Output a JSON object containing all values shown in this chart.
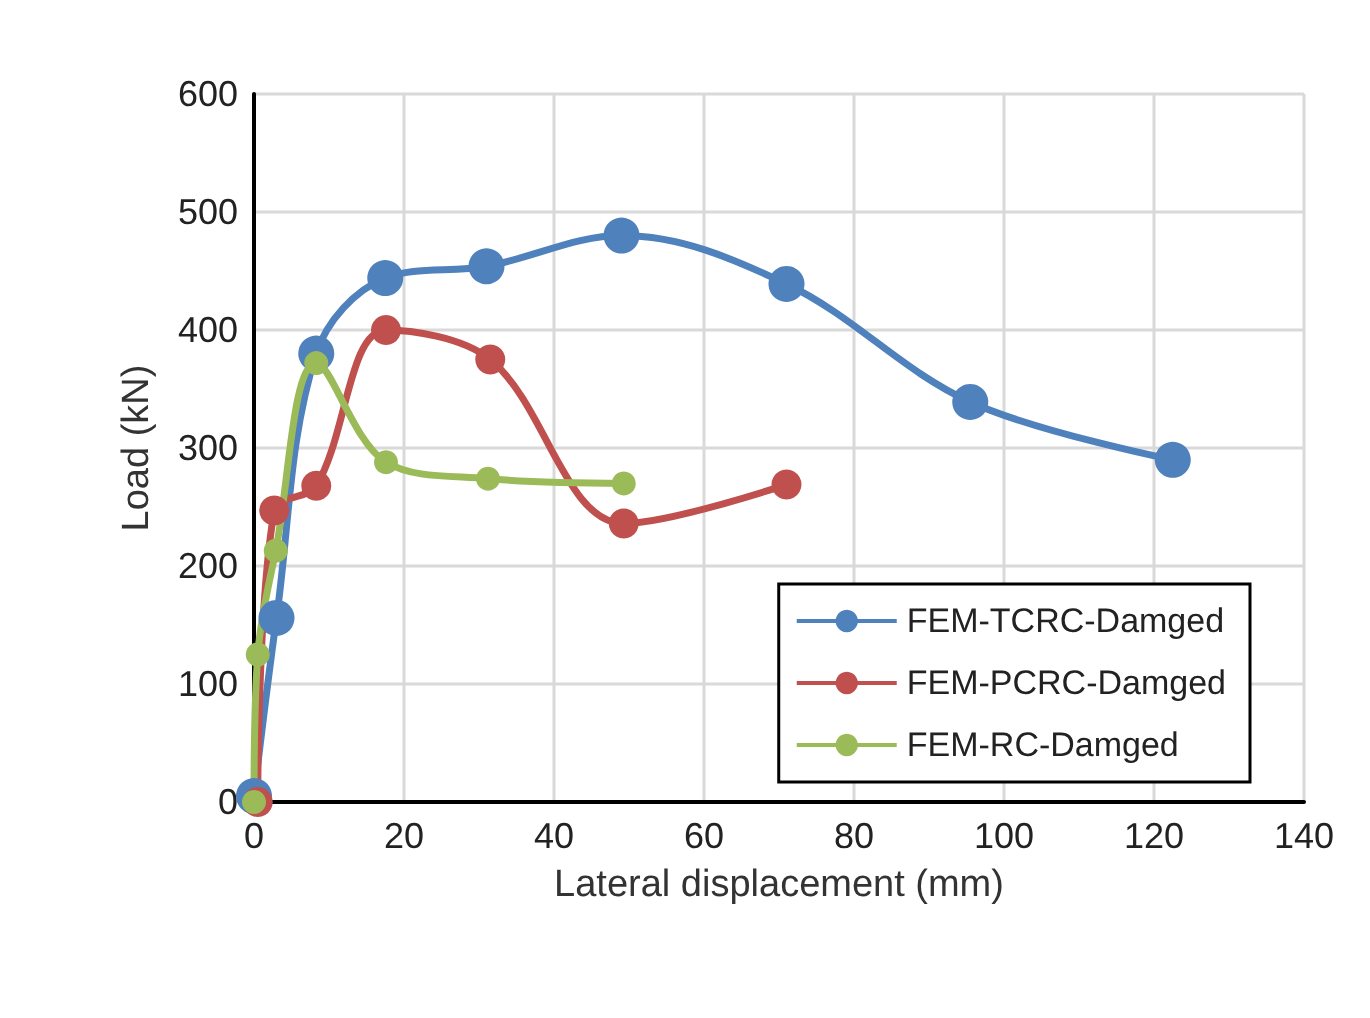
{
  "chart_data": {
    "type": "line",
    "xlabel": "Lateral displacement (mm)",
    "ylabel": "Load (kN)",
    "xlim": [
      0,
      140
    ],
    "xticks": [
      0,
      20,
      40,
      60,
      80,
      100,
      120,
      140
    ],
    "ylim": [
      0,
      600
    ],
    "yticks": [
      0,
      100,
      200,
      300,
      400,
      500,
      600
    ],
    "grid": true,
    "legend": "bottom right",
    "marker": "circle",
    "line_style": "solid",
    "series": [
      {
        "name": "FEM-TCRC-Damged",
        "color": "#4f81bd",
        "x": [
          0,
          3,
          8.3,
          17.5,
          31,
          49,
          71,
          95.5,
          122.5
        ],
        "values": [
          5,
          156,
          380,
          444,
          454,
          480,
          439,
          339,
          290
        ]
      },
      {
        "name": "FEM-PCRC-Damged",
        "color": "#c0504d",
        "x": [
          0.5,
          2.7,
          8.3,
          17.6,
          31.5,
          49.3,
          71
        ],
        "values": [
          0,
          247,
          268,
          400,
          375,
          236,
          269
        ]
      },
      {
        "name": "FEM-RC-Damged",
        "color": "#9bbb59",
        "x": [
          0,
          0.5,
          2.9,
          8.3,
          17.6,
          31.2,
          49.3
        ],
        "values": [
          0,
          125,
          213,
          372,
          288,
          274,
          270
        ]
      }
    ]
  }
}
